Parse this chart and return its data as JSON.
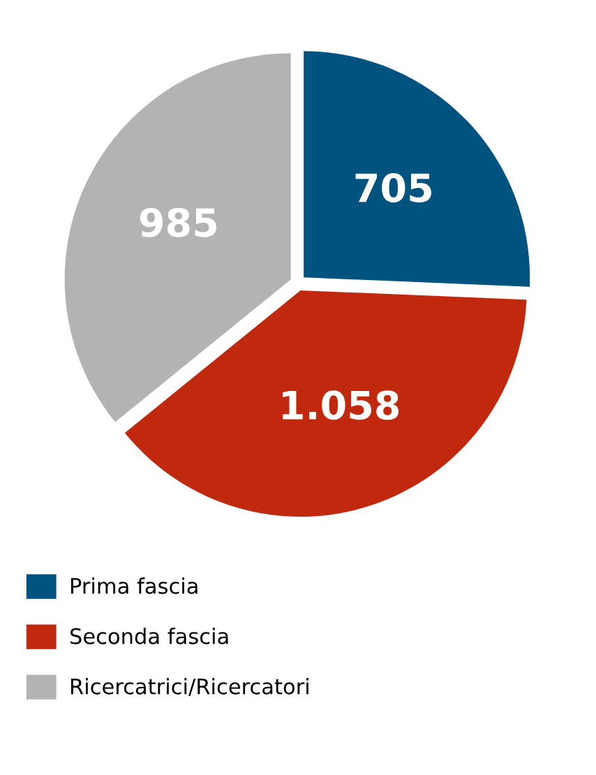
{
  "chart_data": {
    "type": "pie",
    "categories": [
      "Prima fascia",
      "Seconda fascia",
      "Ricercatrici/Ricercatori"
    ],
    "values": [
      705,
      1058,
      985
    ],
    "value_labels": [
      "705",
      "1.058",
      "985"
    ],
    "colors": [
      "#00527f",
      "#c0290e",
      "#b3b3b3"
    ],
    "legend": "bottom left"
  }
}
